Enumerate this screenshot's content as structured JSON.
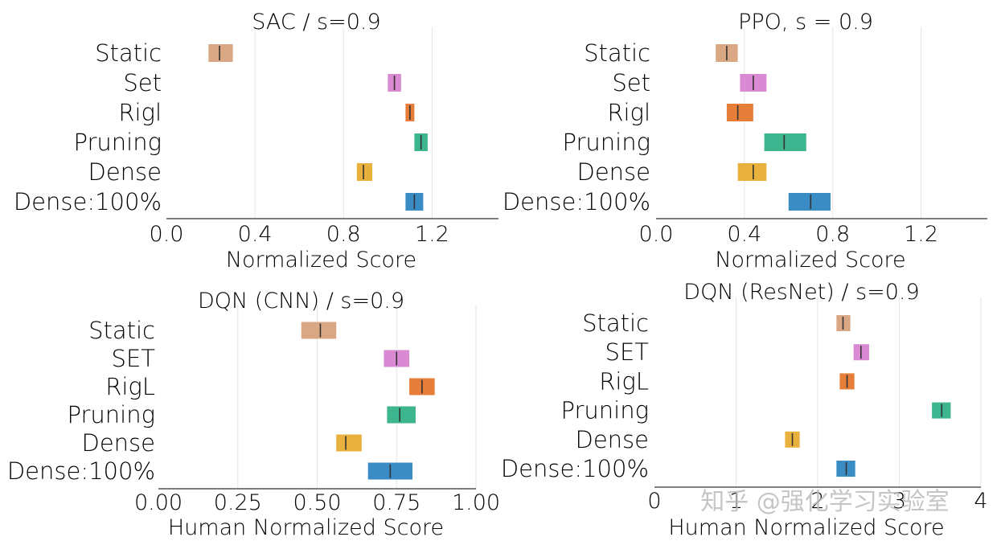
{
  "colors": {
    "Static": "#d9a783",
    "Set": "#d98ad2",
    "Rigl": "#e67e3a",
    "Pruning": "#3db58f",
    "Dense": "#e8b03c",
    "Dense:100%": "#3a8cc4"
  },
  "watermark": "知乎 @强化学习实验室",
  "chart_data": [
    {
      "type": "interval",
      "title": "SAC / s=0.9",
      "xlabel": "Normalized Score",
      "xlim": [
        0,
        1.5
      ],
      "xticks": [
        0.0,
        0.4,
        0.8,
        1.2
      ],
      "xtick_labels": [
        "0.0",
        "0.4",
        "0.8",
        "1.2"
      ],
      "grid": true,
      "categories": [
        "Static",
        "Set",
        "Rigl",
        "Pruning",
        "Dense",
        "Dense:100%"
      ],
      "color_keys": [
        "Static",
        "Set",
        "Rigl",
        "Pruning",
        "Dense",
        "Dense:100%"
      ],
      "lower": [
        0.19,
        1.0,
        1.08,
        1.12,
        0.86,
        1.08
      ],
      "median": [
        0.24,
        1.03,
        1.1,
        1.15,
        0.89,
        1.12
      ],
      "upper": [
        0.3,
        1.06,
        1.12,
        1.18,
        0.93,
        1.16
      ]
    },
    {
      "type": "interval",
      "title": "PPO, s = 0.9",
      "xlabel": "Normalized Score",
      "xlim": [
        0,
        1.5
      ],
      "xticks": [
        0.0,
        0.4,
        0.8,
        1.2
      ],
      "xtick_labels": [
        "0.0",
        "0.4",
        "0.8",
        "1.2"
      ],
      "grid": true,
      "categories": [
        "Static",
        "Set",
        "Rigl",
        "Pruning",
        "Dense",
        "Dense:100%"
      ],
      "color_keys": [
        "Static",
        "Set",
        "Rigl",
        "Pruning",
        "Dense",
        "Dense:100%"
      ],
      "lower": [
        0.27,
        0.38,
        0.32,
        0.49,
        0.37,
        0.6
      ],
      "median": [
        0.32,
        0.44,
        0.37,
        0.58,
        0.44,
        0.7
      ],
      "upper": [
        0.37,
        0.5,
        0.44,
        0.68,
        0.5,
        0.79
      ]
    },
    {
      "type": "interval",
      "title": "DQN (CNN) / s=0.9",
      "xlabel": "Human Normalized Score",
      "xlim": [
        0,
        1.0
      ],
      "xticks": [
        0.0,
        0.25,
        0.5,
        0.75,
        1.0
      ],
      "xtick_labels": [
        "0.00",
        "0.25",
        "0.50",
        "0.75",
        "1.00"
      ],
      "grid": true,
      "categories": [
        "Static",
        "SET",
        "RigL",
        "Pruning",
        "Dense",
        "Dense:100%"
      ],
      "color_keys": [
        "Static",
        "Set",
        "Rigl",
        "Pruning",
        "Dense",
        "Dense:100%"
      ],
      "lower": [
        0.45,
        0.71,
        0.79,
        0.72,
        0.56,
        0.66
      ],
      "median": [
        0.51,
        0.75,
        0.83,
        0.76,
        0.59,
        0.73
      ],
      "upper": [
        0.56,
        0.79,
        0.87,
        0.81,
        0.64,
        0.8
      ]
    },
    {
      "type": "interval",
      "title": "DQN (ResNet) / s=0.9",
      "xlabel": "Human Normalized Score",
      "xlim": [
        0,
        4.0
      ],
      "xticks": [
        0,
        1,
        2,
        3,
        4
      ],
      "xtick_labels": [
        "0",
        "1",
        "2",
        "3",
        "4"
      ],
      "grid": true,
      "categories": [
        "Static",
        "SET",
        "RigL",
        "Pruning",
        "Dense",
        "Dense:100%"
      ],
      "color_keys": [
        "Static",
        "Set",
        "Rigl",
        "Pruning",
        "Dense",
        "Dense:100%"
      ],
      "lower": [
        2.23,
        2.44,
        2.27,
        3.4,
        1.6,
        2.23
      ],
      "median": [
        2.31,
        2.53,
        2.36,
        3.52,
        1.69,
        2.35
      ],
      "upper": [
        2.4,
        2.63,
        2.45,
        3.63,
        1.78,
        2.46
      ]
    }
  ]
}
